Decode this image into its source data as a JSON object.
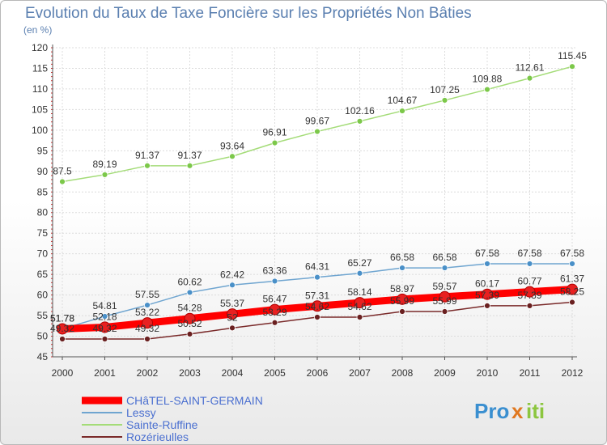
{
  "header": {
    "title": "Evolution du Taux de Taxe Foncière sur les Propriétés Non Bâties",
    "unit": "(en %)"
  },
  "brand": {
    "name_part1": "Pro",
    "name_part2": "x",
    "name_part3": "iti"
  },
  "chart_data": {
    "type": "line",
    "title": "Evolution du Taux de Taxe Foncière sur les Propriétés Non Bâties",
    "ylabel": "(en %)",
    "xlabel": "",
    "x": [
      "2000",
      "2001",
      "2002",
      "2003",
      "2004",
      "2005",
      "2006",
      "2007",
      "2008",
      "2009",
      "2010",
      "2011",
      "2012"
    ],
    "ylim": [
      45,
      120
    ],
    "yticks": [
      45,
      50,
      55,
      60,
      65,
      70,
      75,
      80,
      85,
      90,
      95,
      100,
      105,
      110,
      115,
      120
    ],
    "legend_position": "bottom-left",
    "series": [
      {
        "name": "CHâTEL-SAINT-GERMAIN",
        "color": "#ff0000",
        "marker_color": "#e82020",
        "values": [
          51.78,
          52.18,
          53.22,
          54.28,
          55.37,
          56.47,
          57.31,
          58.14,
          58.97,
          59.57,
          60.17,
          60.77,
          61.37
        ],
        "labels": [
          "51.78",
          "52.18",
          "53.22",
          "54.28",
          "55.37",
          "56.47",
          "57.31",
          "58.14",
          "58.97",
          "59.57",
          "60.17",
          "60.77",
          "61.37"
        ]
      },
      {
        "name": "Lessy",
        "color": "#6fa5d0",
        "marker_color": "#4a90c8",
        "values": [
          51.78,
          54.81,
          57.55,
          60.62,
          62.42,
          63.36,
          64.31,
          65.27,
          66.58,
          66.58,
          67.58,
          67.58,
          67.58
        ],
        "labels": [
          "51.78",
          "54.81",
          "57.55",
          "60.62",
          "62.42",
          "63.36",
          "64.31",
          "65.27",
          "66.58",
          "66.58",
          "67.58",
          "67.58",
          "67.58"
        ]
      },
      {
        "name": "Sainte-Ruffine",
        "color": "#a4dc78",
        "marker_color": "#7cc84a",
        "values": [
          87.5,
          89.19,
          91.37,
          91.37,
          93.64,
          96.91,
          99.67,
          102.16,
          104.67,
          107.25,
          109.88,
          112.61,
          115.45
        ],
        "labels": [
          "87.5",
          "89.19",
          "91.37",
          "91.37",
          "93.64",
          "96.91",
          "99.67",
          "102.16",
          "104.67",
          "107.25",
          "109.88",
          "112.61",
          "115.45"
        ]
      },
      {
        "name": "Rozérieulles",
        "color": "#7a2a2a",
        "marker_color": "#6a2020",
        "values": [
          49.32,
          49.32,
          49.32,
          50.52,
          52,
          53.29,
          54.62,
          54.62,
          55.99,
          55.99,
          57.39,
          57.39,
          58.25
        ],
        "labels": [
          "49.32",
          "49.32",
          "49.32",
          "50.52",
          "52",
          "53.29",
          "54.62",
          "54.62",
          "55.99",
          "55.99",
          "57.39",
          "57.39",
          "58.25"
        ]
      }
    ]
  }
}
